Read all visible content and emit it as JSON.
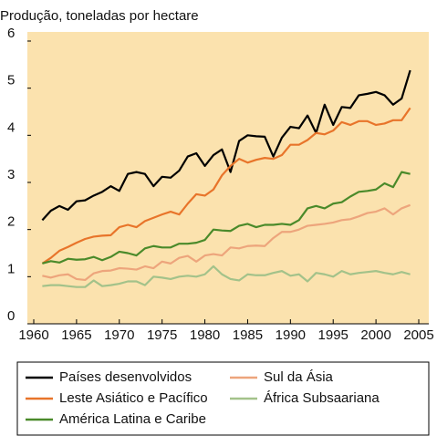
{
  "chart_data": {
    "type": "line",
    "title": "Produção, toneladas por hectare",
    "x": [
      1961,
      1962,
      1963,
      1964,
      1965,
      1966,
      1967,
      1968,
      1969,
      1970,
      1971,
      1972,
      1973,
      1974,
      1975,
      1976,
      1977,
      1978,
      1979,
      1980,
      1981,
      1982,
      1983,
      1984,
      1985,
      1986,
      1987,
      1988,
      1989,
      1990,
      1991,
      1992,
      1993,
      1994,
      1995,
      1996,
      1997,
      1998,
      1999,
      2000,
      2001,
      2002,
      2003,
      2004
    ],
    "xlim": [
      1960,
      2005
    ],
    "xticks": [
      1960,
      1965,
      1970,
      1975,
      1980,
      1985,
      1990,
      1995,
      2000,
      2005
    ],
    "ylim": [
      0,
      6
    ],
    "yticks": [
      0,
      1,
      2,
      3,
      4,
      5,
      6
    ],
    "background": "#fbe2ae",
    "series": [
      {
        "name": "Países desenvolvidos",
        "color": "#000000",
        "values": [
          2.2,
          2.4,
          2.5,
          2.42,
          2.6,
          2.62,
          2.72,
          2.8,
          2.92,
          2.82,
          3.18,
          3.22,
          3.18,
          2.92,
          3.12,
          3.1,
          3.25,
          3.55,
          3.62,
          3.35,
          3.58,
          3.7,
          3.22,
          3.88,
          4.0,
          3.98,
          3.97,
          3.55,
          3.95,
          4.18,
          4.15,
          4.42,
          4.05,
          4.65,
          4.22,
          4.6,
          4.58,
          4.85,
          4.88,
          4.92,
          4.85,
          4.65,
          4.78,
          5.38
        ]
      },
      {
        "name": "Leste Asiático e Pacífico",
        "color": "#e8742a",
        "values": [
          1.28,
          1.4,
          1.55,
          1.63,
          1.72,
          1.8,
          1.85,
          1.87,
          1.88,
          2.05,
          2.1,
          2.05,
          2.18,
          2.25,
          2.32,
          2.38,
          2.32,
          2.55,
          2.75,
          2.72,
          2.85,
          3.15,
          3.35,
          3.5,
          3.42,
          3.48,
          3.52,
          3.5,
          3.58,
          3.8,
          3.8,
          3.9,
          4.05,
          4.02,
          4.1,
          4.28,
          4.22,
          4.3,
          4.3,
          4.22,
          4.25,
          4.32,
          4.32,
          4.58
        ]
      },
      {
        "name": "América Latina e Caribe",
        "color": "#4a8a2a",
        "values": [
          1.28,
          1.33,
          1.3,
          1.38,
          1.36,
          1.37,
          1.42,
          1.35,
          1.42,
          1.53,
          1.5,
          1.45,
          1.6,
          1.65,
          1.62,
          1.62,
          1.7,
          1.7,
          1.72,
          1.78,
          2.0,
          1.98,
          1.97,
          2.08,
          2.12,
          2.05,
          2.1,
          2.1,
          2.12,
          2.1,
          2.2,
          2.45,
          2.5,
          2.45,
          2.55,
          2.58,
          2.7,
          2.8,
          2.82,
          2.85,
          2.98,
          2.9,
          3.22,
          3.18
        ]
      },
      {
        "name": "Sul da Ásia",
        "color": "#eda57c",
        "values": [
          1.02,
          0.98,
          1.03,
          1.05,
          0.95,
          0.93,
          1.07,
          1.12,
          1.13,
          1.18,
          1.17,
          1.15,
          1.22,
          1.18,
          1.32,
          1.28,
          1.4,
          1.44,
          1.32,
          1.45,
          1.48,
          1.45,
          1.62,
          1.6,
          1.65,
          1.66,
          1.65,
          1.82,
          1.95,
          1.95,
          2.0,
          2.08,
          2.1,
          2.12,
          2.15,
          2.2,
          2.22,
          2.28,
          2.35,
          2.38,
          2.45,
          2.32,
          2.45,
          2.52
        ]
      },
      {
        "name": "África Subsaariana",
        "color": "#a3c28a",
        "values": [
          0.8,
          0.82,
          0.82,
          0.8,
          0.78,
          0.78,
          0.92,
          0.8,
          0.82,
          0.85,
          0.9,
          0.9,
          0.82,
          1.0,
          0.98,
          0.95,
          1.0,
          1.02,
          1.0,
          1.05,
          1.22,
          1.05,
          0.95,
          0.92,
          1.05,
          1.03,
          1.03,
          1.08,
          1.12,
          1.02,
          1.05,
          0.9,
          1.08,
          1.05,
          1.0,
          1.12,
          1.05,
          1.08,
          1.1,
          1.12,
          1.08,
          1.05,
          1.1,
          1.05
        ]
      }
    ]
  }
}
